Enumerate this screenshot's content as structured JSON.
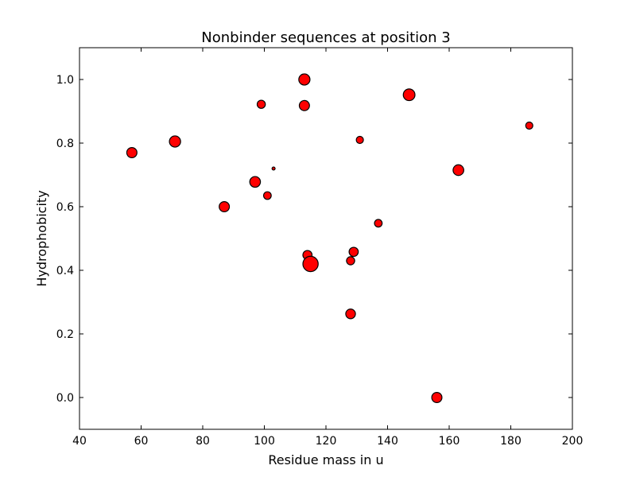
{
  "chart_data": {
    "type": "scatter",
    "title": "Nonbinder sequences at position 3",
    "xlabel": "Residue mass in u",
    "ylabel": "Hydrophobicity",
    "xlim": [
      40,
      200
    ],
    "ylim": [
      -0.1,
      1.1
    ],
    "xticks": [
      40,
      60,
      80,
      100,
      120,
      140,
      160,
      180,
      200
    ],
    "yticks": [
      0.0,
      0.2,
      0.4,
      0.6,
      0.8,
      1.0
    ],
    "xtick_labels": [
      "40",
      "60",
      "80",
      "100",
      "120",
      "140",
      "160",
      "180",
      "200"
    ],
    "ytick_labels": [
      "0.0",
      "0.2",
      "0.4",
      "0.6",
      "0.8",
      "1.0"
    ],
    "grid": false,
    "marker_color": "#ff0000",
    "marker_edge_color": "#000000",
    "points": [
      {
        "x": 57,
        "y": 0.77,
        "size": 2.0
      },
      {
        "x": 71,
        "y": 0.805,
        "size": 2.2
      },
      {
        "x": 87,
        "y": 0.6,
        "size": 2.0
      },
      {
        "x": 97,
        "y": 0.678,
        "size": 2.1
      },
      {
        "x": 99,
        "y": 0.922,
        "size": 1.6
      },
      {
        "x": 101,
        "y": 0.635,
        "size": 1.5
      },
      {
        "x": 103,
        "y": 0.72,
        "size": 0.6
      },
      {
        "x": 113,
        "y": 1.0,
        "size": 2.2
      },
      {
        "x": 113,
        "y": 0.918,
        "size": 2.0
      },
      {
        "x": 114,
        "y": 0.448,
        "size": 1.8
      },
      {
        "x": 115,
        "y": 0.42,
        "size": 3.0
      },
      {
        "x": 128,
        "y": 0.43,
        "size": 1.6
      },
      {
        "x": 128,
        "y": 0.263,
        "size": 1.9
      },
      {
        "x": 129,
        "y": 0.458,
        "size": 1.8
      },
      {
        "x": 131,
        "y": 0.81,
        "size": 1.4
      },
      {
        "x": 137,
        "y": 0.548,
        "size": 1.5
      },
      {
        "x": 147,
        "y": 0.952,
        "size": 2.3
      },
      {
        "x": 156,
        "y": 0.0,
        "size": 2.0
      },
      {
        "x": 163,
        "y": 0.715,
        "size": 2.1
      },
      {
        "x": 186,
        "y": 0.855,
        "size": 1.4
      }
    ]
  }
}
